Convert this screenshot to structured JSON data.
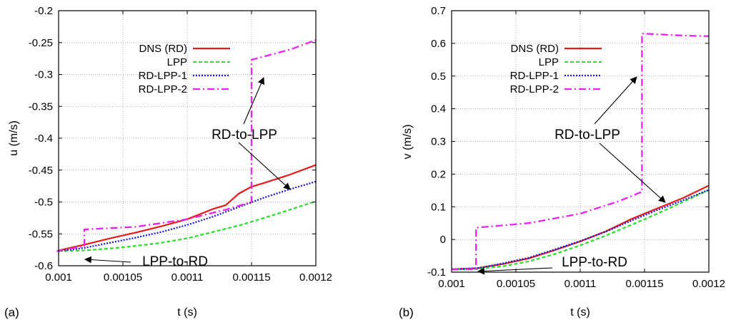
{
  "chart_data": [
    {
      "type": "line",
      "panel_label": "(a)",
      "xlabel": "t (s)",
      "ylabel": "u (m/s)",
      "xlim": [
        0.001,
        0.0012
      ],
      "ylim": [
        -0.6,
        -0.2
      ],
      "xticks": [
        "0.001",
        "0.00105",
        "0.0011",
        "0.00115",
        "0.0012"
      ],
      "yticks": [
        "-0.6",
        "-0.55",
        "-0.5",
        "-0.45",
        "-0.4",
        "-0.35",
        "-0.3",
        "-0.25",
        "-0.2"
      ],
      "grid": true,
      "legend_position": "top-left",
      "series": [
        {
          "name": "DNS (RD)",
          "color": "#e41a1c",
          "dash": "solid",
          "x": [
            0.001,
            0.00102,
            0.00104,
            0.00106,
            0.00108,
            0.0011,
            0.00112,
            0.00113,
            0.00114,
            0.00115,
            0.00116,
            0.00118,
            0.0012
          ],
          "y": [
            -0.576,
            -0.567,
            -0.557,
            -0.548,
            -0.538,
            -0.527,
            -0.511,
            -0.505,
            -0.487,
            -0.476,
            -0.47,
            -0.457,
            -0.442
          ]
        },
        {
          "name": "LPP",
          "color": "#33dd33",
          "dash": "dashed",
          "x": [
            0.001,
            0.00102,
            0.00104,
            0.00106,
            0.00108,
            0.0011,
            0.00112,
            0.00114,
            0.00116,
            0.00118,
            0.0012
          ],
          "y": [
            -0.577,
            -0.576,
            -0.573,
            -0.569,
            -0.564,
            -0.557,
            -0.547,
            -0.537,
            -0.525,
            -0.512,
            -0.499
          ]
        },
        {
          "name": "RD-LPP-1",
          "color": "#1a1ad0",
          "dash": "dotted",
          "x": [
            0.001,
            0.00102,
            0.00104,
            0.00106,
            0.00108,
            0.0011,
            0.00112,
            0.00114,
            0.00116,
            0.00118,
            0.0012
          ],
          "y": [
            -0.577,
            -0.572,
            -0.564,
            -0.556,
            -0.547,
            -0.536,
            -0.523,
            -0.508,
            -0.493,
            -0.48,
            -0.468
          ]
        },
        {
          "name": "RD-LPP-2",
          "color": "#ee22ee",
          "dash": "dashdot",
          "x": [
            0.001,
            0.000999,
            0.00102,
            0.00102,
            0.00106,
            0.0011,
            0.00113,
            0.00115,
            0.00115,
            0.00118,
            0.0012
          ],
          "y": [
            -0.577,
            -0.577,
            -0.569,
            -0.543,
            -0.539,
            -0.527,
            -0.512,
            -0.5,
            -0.277,
            -0.261,
            -0.246
          ]
        }
      ],
      "annotations": [
        "RD-to-LPP",
        "LPP-to-RD"
      ]
    },
    {
      "type": "line",
      "panel_label": "(b)",
      "xlabel": "t (s)",
      "ylabel": "v (m/s)",
      "xlim": [
        0.001,
        0.0012
      ],
      "ylim": [
        -0.1,
        0.7
      ],
      "xticks": [
        "0.001",
        "0.00105",
        "0.0011",
        "0.00115",
        "0.0012"
      ],
      "yticks": [
        "-0.1",
        "0",
        "0.1",
        "0.2",
        "0.3",
        "0.4",
        "0.5",
        "0.6",
        "0.7"
      ],
      "grid": true,
      "legend_position": "top-left",
      "series": [
        {
          "name": "DNS (RD)",
          "color": "#e41a1c",
          "dash": "solid",
          "x": [
            0.001,
            0.00102,
            0.00104,
            0.00106,
            0.00108,
            0.0011,
            0.00112,
            0.00114,
            0.00116,
            0.00118,
            0.0012
          ],
          "y": [
            -0.091,
            -0.088,
            -0.075,
            -0.058,
            -0.033,
            -0.006,
            0.025,
            0.063,
            0.095,
            0.127,
            0.165
          ]
        },
        {
          "name": "LPP",
          "color": "#33dd33",
          "dash": "dashed",
          "x": [
            0.001,
            0.00102,
            0.00104,
            0.00106,
            0.00108,
            0.0011,
            0.00112,
            0.00114,
            0.00116,
            0.00118,
            0.0012
          ],
          "y": [
            -0.092,
            -0.09,
            -0.082,
            -0.067,
            -0.045,
            -0.018,
            0.012,
            0.045,
            0.079,
            0.115,
            0.151
          ]
        },
        {
          "name": "RD-LPP-1",
          "color": "#1a1ad0",
          "dash": "dotted",
          "x": [
            0.001,
            0.00102,
            0.00104,
            0.00106,
            0.00108,
            0.0011,
            0.00112,
            0.00114,
            0.00116,
            0.00118,
            0.0012
          ],
          "y": [
            -0.091,
            -0.088,
            -0.073,
            -0.056,
            -0.031,
            -0.005,
            0.024,
            0.058,
            0.09,
            0.12,
            0.152
          ]
        },
        {
          "name": "RD-LPP-2",
          "color": "#ee22ee",
          "dash": "dashdot",
          "x": [
            0.001,
            0.001019,
            0.001019,
            0.00106,
            0.0011,
            0.00113,
            0.001148,
            0.001148,
            0.00118,
            0.0012
          ],
          "y": [
            -0.091,
            -0.091,
            0.036,
            0.05,
            0.079,
            0.117,
            0.146,
            0.63,
            0.624,
            0.622
          ]
        }
      ],
      "annotations": [
        "RD-to-LPP",
        "LPP-to-RD"
      ]
    }
  ]
}
